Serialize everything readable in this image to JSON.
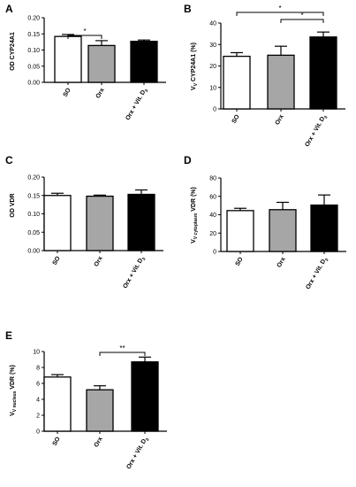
{
  "figure": {
    "colors": {
      "SO": "#ffffff",
      "Orx": "#a6a6a6",
      "Orx + Vit. D3": "#000000",
      "stroke": "#000000"
    }
  },
  "chart_data": [
    {
      "type": "bar",
      "panel": "A",
      "categories": [
        "SO",
        "Orx",
        "Orx + Vit. D3"
      ],
      "values": [
        0.142,
        0.114,
        0.127
      ],
      "errors": [
        0.006,
        0.015,
        0.004
      ],
      "ylabel": "OD CYP24A1",
      "ylim": [
        0,
        0.2
      ],
      "yticks": [
        "0.00",
        "0.05",
        "0.10",
        "0.15",
        "0.20"
      ],
      "significance": [
        {
          "from": 0,
          "to": 1,
          "label": "*"
        }
      ]
    },
    {
      "type": "bar",
      "panel": "B",
      "categories": [
        "SO",
        "Orx",
        "Orx + Vit. D3"
      ],
      "values": [
        24.5,
        25.0,
        33.5
      ],
      "errors": [
        1.7,
        4.2,
        2.3
      ],
      "ylabel": "VV CYP24A1 (%)",
      "ylim": [
        0,
        40
      ],
      "yticks": [
        "0",
        "10",
        "20",
        "30",
        "40"
      ],
      "significance": [
        {
          "from": 0,
          "to": 2,
          "label": "*"
        },
        {
          "from": 1,
          "to": 2,
          "label": "*"
        }
      ]
    },
    {
      "type": "bar",
      "panel": "C",
      "categories": [
        "SO",
        "Orx",
        "Orx + Vit. D3"
      ],
      "values": [
        0.15,
        0.148,
        0.153
      ],
      "errors": [
        0.006,
        0.003,
        0.012
      ],
      "ylabel": "OD VDR",
      "ylim": [
        0,
        0.2
      ],
      "yticks": [
        "0.00",
        "0.05",
        "0.10",
        "0.15",
        "0.20"
      ],
      "significance": []
    },
    {
      "type": "bar",
      "panel": "D",
      "categories": [
        "SO",
        "Orx",
        "Orx + Vit. D3"
      ],
      "values": [
        44.5,
        45.5,
        50.5
      ],
      "errors": [
        2.5,
        8.0,
        11.0
      ],
      "ylabel": "VV cytoplasm VDR (%)",
      "ylim": [
        0,
        80
      ],
      "yticks": [
        "0",
        "20",
        "40",
        "60",
        "80"
      ],
      "significance": []
    },
    {
      "type": "bar",
      "panel": "E",
      "categories": [
        "SO",
        "Orx",
        "Orx + Vit. D3"
      ],
      "values": [
        6.8,
        5.2,
        8.7
      ],
      "errors": [
        0.3,
        0.5,
        0.6
      ],
      "ylabel": "VV nucleus VDR (%)",
      "ylim": [
        0,
        10
      ],
      "yticks": [
        "0",
        "2",
        "4",
        "6",
        "8",
        "10"
      ],
      "significance": [
        {
          "from": 1,
          "to": 2,
          "label": "**"
        }
      ]
    }
  ]
}
